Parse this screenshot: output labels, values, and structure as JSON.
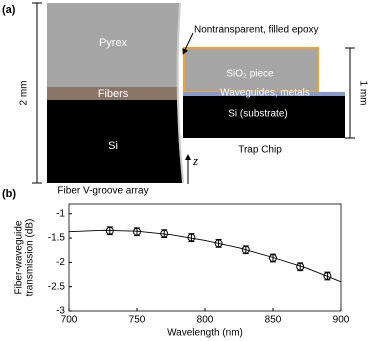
{
  "panel_labels": [
    "(a)",
    "(b)"
  ],
  "diagram": {
    "pyrex": "Pyrex",
    "fibers": "Fibers",
    "si_left": "Si",
    "left_caption": "Fiber V-groove array",
    "left_dimension": "2 mm",
    "epoxy": "Nontransparent, filled epoxy",
    "sio2": "SiO₂ piece",
    "waveguides": "Waveguides, metals",
    "substrate": "Si (substrate)",
    "right_caption": "Trap Chip",
    "right_dimension": "1 mm",
    "axis": "z"
  },
  "chart_data": {
    "type": "scatter",
    "xlabel": "Wavelength (nm)",
    "ylabel": [
      "Fiber-waveguide",
      "transmission (dB)"
    ],
    "xlim": [
      700,
      900
    ],
    "ylim": [
      -3,
      -0.8
    ],
    "xticks": [
      700,
      750,
      800,
      850,
      900
    ],
    "yticks": [
      -3,
      -2.5,
      -2,
      -1.5,
      -1
    ],
    "series": [
      {
        "type": "scatter",
        "color": "#000000",
        "x": [
          730,
          750,
          770,
          790,
          810,
          830,
          850,
          870,
          890
        ],
        "values": [
          -1.35,
          -1.37,
          -1.41,
          -1.49,
          -1.61,
          -1.74,
          -1.91,
          -2.09,
          -2.28
        ],
        "errors": [
          0.08,
          0.08,
          0.08,
          0.08,
          0.08,
          0.08,
          0.08,
          0.08,
          0.08
        ]
      },
      {
        "type": "line",
        "color": "#000000",
        "x": [
          700,
          725,
          750,
          775,
          800,
          825,
          850,
          875,
          900
        ],
        "values": [
          -1.37,
          -1.34,
          -1.36,
          -1.43,
          -1.55,
          -1.7,
          -1.9,
          -2.12,
          -2.4
        ]
      }
    ]
  }
}
